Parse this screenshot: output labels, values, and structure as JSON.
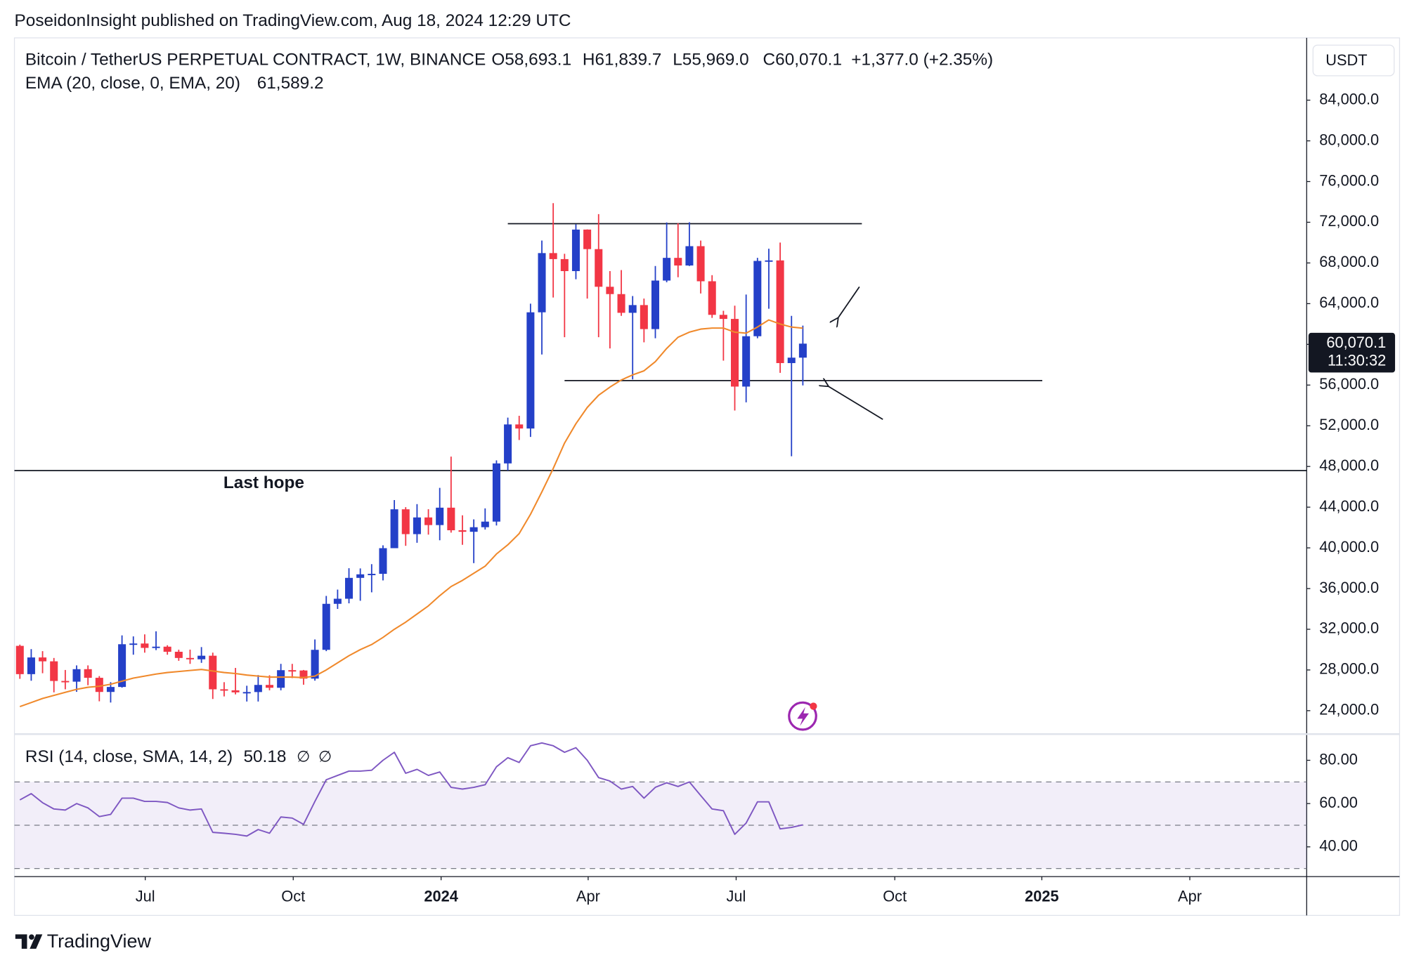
{
  "header": {
    "publisher": "PoseidonInsight published on TradingView.com, Aug 18, 2024 12:29 UTC"
  },
  "footer": {
    "brand": "TradingView"
  },
  "chart_data": [
    {
      "type": "candlestick",
      "symbol": "Bitcoin / TetherUS PERPETUAL CONTRACT, 1W, BINANCE",
      "ohlc_labels": [
        "O58,693.1",
        "H61,839.7",
        "L55,969.0",
        "C60,070.1"
      ],
      "change_label": "+1,377.0 (+2.35%)",
      "currency": "USDT",
      "last_price_label": "60,070.1",
      "countdown": "11:30:32",
      "up_color": "#2440c8",
      "down_color": "#f23645",
      "x": [
        0,
        1,
        2,
        3,
        4,
        5,
        6,
        7,
        8,
        9,
        10,
        11,
        12,
        13,
        14,
        15,
        16,
        17,
        18,
        19,
        20,
        21,
        22,
        23,
        24,
        25,
        26,
        27,
        28,
        29,
        30,
        31,
        32,
        33,
        34,
        35,
        36,
        37,
        38,
        39,
        40,
        41,
        42,
        43,
        44,
        45,
        46,
        47,
        48,
        49,
        50,
        51,
        52,
        53,
        54,
        55,
        56,
        57,
        58,
        59,
        60,
        61,
        62,
        63,
        64,
        65,
        66,
        67,
        68,
        69
      ],
      "open": [
        30370,
        27590,
        29230,
        28850,
        26920,
        26850,
        28080,
        27230,
        25840,
        26330,
        30530,
        30600,
        30170,
        30290,
        29790,
        29180,
        29050,
        29400,
        26100,
        26000,
        25800,
        25830,
        26530,
        26250,
        27980,
        27950,
        27150,
        29980,
        34500,
        35000,
        37050,
        37400,
        37450,
        39970,
        43790,
        41350,
        42990,
        42240,
        43950,
        41730,
        41580,
        42030,
        42580,
        48300,
        52130,
        51730,
        63150,
        68970,
        68380,
        67200,
        71280,
        69360,
        65660,
        64940,
        63100,
        63860,
        61500,
        66270,
        68500,
        67750,
        69650,
        66200,
        62900,
        62500,
        55850,
        60800,
        68200,
        68250,
        58160,
        58693.1
      ],
      "high": [
        30490,
        30050,
        29850,
        29180,
        28000,
        28450,
        28450,
        27400,
        26800,
        31400,
        31300,
        31500,
        31800,
        30430,
        29990,
        30000,
        30250,
        29700,
        26800,
        28200,
        26450,
        27500,
        27480,
        28600,
        28600,
        28000,
        31000,
        35280,
        35900,
        38000,
        37980,
        38400,
        40250,
        44700,
        44000,
        44300,
        43800,
        45900,
        48970,
        43200,
        42800,
        43880,
        48600,
        52800,
        52980,
        64000,
        70200,
        73880,
        68900,
        71800,
        71300,
        72800,
        67200,
        67300,
        64750,
        64500,
        67700,
        71980,
        71900,
        72000,
        70200,
        66800,
        63300,
        63800,
        64900,
        68500,
        69400,
        70000,
        62800,
        61839.7
      ],
      "low": [
        27130,
        26940,
        27680,
        25800,
        26100,
        25850,
        26500,
        24920,
        24800,
        26260,
        29500,
        29700,
        29950,
        29500,
        28900,
        28600,
        28700,
        25150,
        25400,
        25600,
        24900,
        24900,
        26000,
        26000,
        27200,
        26550,
        26950,
        29850,
        34000,
        34550,
        34800,
        35630,
        36800,
        39970,
        40200,
        40500,
        41300,
        40750,
        41500,
        40300,
        38500,
        41800,
        42200,
        47600,
        50600,
        50900,
        59000,
        64600,
        60700,
        66400,
        64500,
        60700,
        59600,
        62800,
        56550,
        60200,
        60600,
        66100,
        66600,
        67700,
        65000,
        62600,
        58400,
        53500,
        54300,
        60600,
        63500,
        57200,
        49000,
        55969.0
      ],
      "close": [
        27590,
        29230,
        28850,
        26920,
        26850,
        28080,
        27230,
        25840,
        26330,
        30530,
        30600,
        30170,
        30290,
        29790,
        29180,
        29050,
        29400,
        26100,
        26000,
        25800,
        25830,
        26530,
        26250,
        27980,
        27950,
        27150,
        29980,
        34500,
        35000,
        37050,
        37400,
        37450,
        39970,
        43790,
        41350,
        42990,
        42240,
        43950,
        41730,
        41580,
        42030,
        42580,
        48300,
        52130,
        51730,
        63150,
        68970,
        68380,
        67200,
        71280,
        69360,
        65660,
        64940,
        63100,
        63860,
        61500,
        66270,
        68500,
        67750,
        69650,
        66200,
        62900,
        62500,
        55850,
        60800,
        68200,
        68250,
        58160,
        58693.1,
        60070.1
      ],
      "series": [
        {
          "name": "EMA (20, close, 0, EMA, 20)",
          "color": "#f0892b",
          "legend_value": "61,589.2",
          "values": [
            24400,
            24800,
            25200,
            25500,
            25800,
            26100,
            26300,
            26400,
            26600,
            26900,
            27200,
            27400,
            27600,
            27750,
            27850,
            27950,
            28050,
            27900,
            27750,
            27650,
            27500,
            27400,
            27300,
            27300,
            27300,
            27250,
            27400,
            28000,
            28700,
            29400,
            30000,
            30500,
            31200,
            32000,
            32700,
            33500,
            34300,
            35300,
            36200,
            36800,
            37500,
            38200,
            39400,
            40300,
            41400,
            43300,
            45500,
            47800,
            50300,
            52200,
            53800,
            55000,
            55800,
            56500,
            57000,
            57400,
            58300,
            59600,
            60700,
            61200,
            61500,
            61600,
            61600,
            61200,
            61100,
            61700,
            62400,
            62000,
            61700,
            61589.2
          ]
        }
      ],
      "xlim": [
        -0.48,
        113.4
      ],
      "xticks": [
        {
          "value": 11.05,
          "label": "Jul"
        },
        {
          "value": 24.09,
          "label": "Oct"
        },
        {
          "value": 37.12,
          "label": "2024"
        },
        {
          "value": 50.08,
          "label": "Apr"
        },
        {
          "value": 63.12,
          "label": "Jul"
        },
        {
          "value": 77.1,
          "label": "Oct"
        },
        {
          "value": 90.06,
          "label": "2025"
        },
        {
          "value": 103.1,
          "label": "Apr"
        }
      ],
      "ylim": [
        21784,
        90120
      ],
      "yticks": [
        {
          "value": 24000,
          "label": "24,000.0"
        },
        {
          "value": 28000,
          "label": "28,000.0"
        },
        {
          "value": 32000,
          "label": "32,000.0"
        },
        {
          "value": 36000,
          "label": "36,000.0"
        },
        {
          "value": 40000,
          "label": "40,000.0"
        },
        {
          "value": 44000,
          "label": "44,000.0"
        },
        {
          "value": 48000,
          "label": "48,000.0"
        },
        {
          "value": 52000,
          "label": "52,000.0"
        },
        {
          "value": 56000,
          "label": "56,000.0"
        },
        {
          "value": 60000,
          "label": "60,000.0"
        },
        {
          "value": 64000,
          "label": "64,000.0"
        },
        {
          "value": 68000,
          "label": "68,000.0"
        },
        {
          "value": 72000,
          "label": "72,000.0"
        },
        {
          "value": 76000,
          "label": "76,000.0"
        },
        {
          "value": 80000,
          "label": "80,000.0"
        },
        {
          "value": 84000,
          "label": "84,000.0"
        }
      ],
      "levels": [
        {
          "value": 71860,
          "from": 43,
          "to": 74.2
        },
        {
          "value": 56440,
          "from": 48,
          "to": 90.1
        },
        {
          "value": 47600
        }
      ],
      "annotations": [
        {
          "text": "Last hope",
          "x": 21.5,
          "y": 46300
        }
      ]
    },
    {
      "type": "line",
      "x": [
        0,
        1,
        2,
        3,
        4,
        5,
        6,
        7,
        8,
        9,
        10,
        11,
        12,
        13,
        14,
        15,
        16,
        17,
        18,
        19,
        20,
        21,
        22,
        23,
        24,
        25,
        26,
        27,
        28,
        29,
        30,
        31,
        32,
        33,
        34,
        35,
        36,
        37,
        38,
        39,
        40,
        41,
        42,
        43,
        44,
        45,
        46,
        47,
        48,
        49,
        50,
        51,
        52,
        53,
        54,
        55,
        56,
        57,
        58,
        59,
        60,
        61,
        62,
        63,
        64,
        65,
        66,
        67,
        68,
        69
      ],
      "series": [
        {
          "name": "RSI (14, close, SMA, 14, 2)",
          "color": "#7e57c2",
          "legend_value": "50.18",
          "values": [
            61.7,
            64.6,
            60.4,
            57.5,
            57,
            60,
            58,
            54,
            55,
            62.5,
            62.5,
            61,
            61,
            60.5,
            58,
            57,
            57.5,
            46.7,
            46.3,
            45.8,
            45,
            48,
            46.3,
            53.8,
            53.3,
            50.4,
            61,
            71,
            73,
            75,
            75,
            75.4,
            80,
            83.7,
            74,
            75.8,
            73,
            74.6,
            67.5,
            66.7,
            67.5,
            68.7,
            77,
            81.2,
            79,
            86.7,
            88,
            86.7,
            83.7,
            85.8,
            80,
            72,
            70.4,
            66.7,
            67.9,
            62.5,
            67.5,
            69.6,
            67.9,
            70,
            63.7,
            57.5,
            56.7,
            45.8,
            51,
            60.8,
            60.8,
            48.3,
            49,
            50.18
          ]
        }
      ],
      "legend_extras": [
        "∅",
        "∅"
      ],
      "xlim": [
        -0.48,
        113.4
      ],
      "ylim": [
        26.25,
        91.67
      ],
      "yticks": [
        {
          "value": 40,
          "label": "40.00"
        },
        {
          "value": 60,
          "label": "60.00"
        },
        {
          "value": 80,
          "label": "80.00"
        }
      ],
      "levels": [
        70,
        50,
        30
      ]
    }
  ]
}
